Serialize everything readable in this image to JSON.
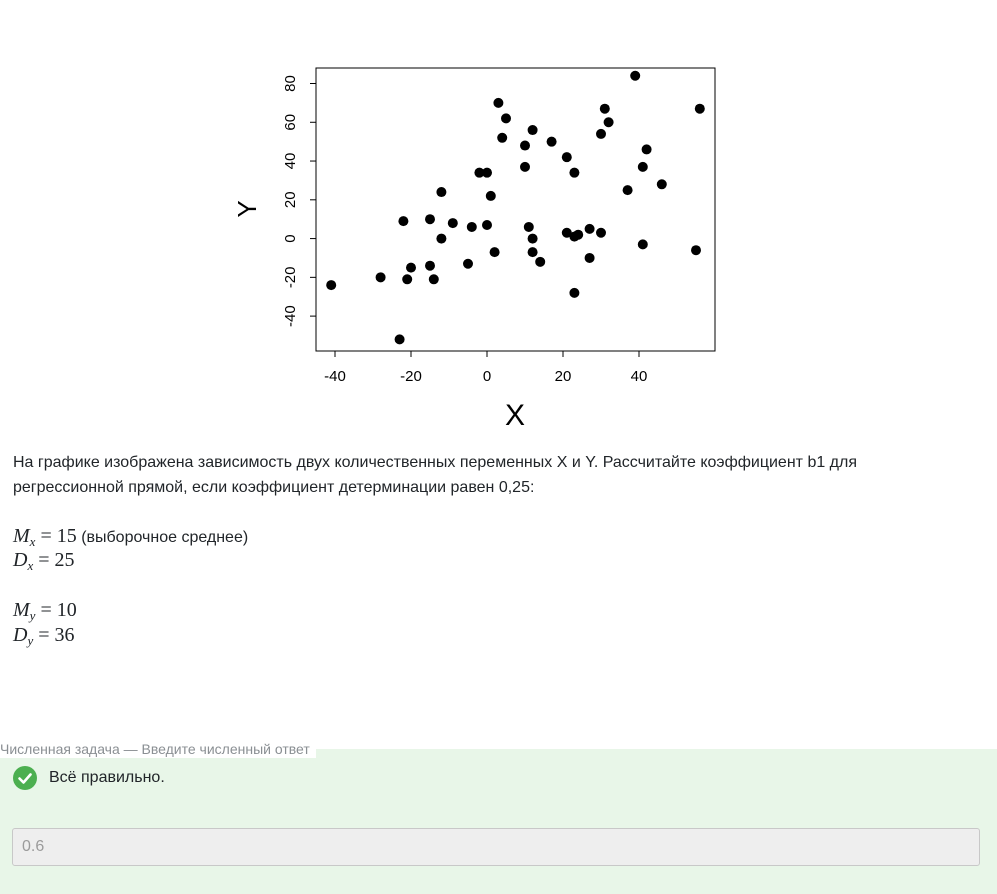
{
  "chart_data": {
    "type": "scatter",
    "xlabel": "X",
    "ylabel": "Y",
    "xlim": [
      -45,
      60
    ],
    "ylim": [
      -58,
      88
    ],
    "xticks": [
      -40,
      -20,
      0,
      20,
      40
    ],
    "yticks": [
      -40,
      -20,
      0,
      20,
      40,
      60,
      80
    ],
    "grid": false,
    "points": [
      [
        -41,
        -24
      ],
      [
        -28,
        -20
      ],
      [
        -23,
        -52
      ],
      [
        -22,
        9
      ],
      [
        -21,
        -21
      ],
      [
        -20,
        -15
      ],
      [
        -15,
        10
      ],
      [
        -15,
        -14
      ],
      [
        -14,
        -21
      ],
      [
        -12,
        24
      ],
      [
        -12,
        0
      ],
      [
        -9,
        8
      ],
      [
        -5,
        -13
      ],
      [
        -4,
        6
      ],
      [
        -2,
        34
      ],
      [
        0,
        34
      ],
      [
        0,
        7
      ],
      [
        1,
        22
      ],
      [
        2,
        -7
      ],
      [
        3,
        70
      ],
      [
        4,
        52
      ],
      [
        5,
        62
      ],
      [
        10,
        48
      ],
      [
        10,
        37
      ],
      [
        11,
        6
      ],
      [
        12,
        0
      ],
      [
        12,
        -7
      ],
      [
        12,
        56
      ],
      [
        14,
        -12
      ],
      [
        17,
        50
      ],
      [
        21,
        42
      ],
      [
        21,
        3
      ],
      [
        23,
        1
      ],
      [
        23,
        34
      ],
      [
        23,
        -28
      ],
      [
        24,
        2
      ],
      [
        27,
        -10
      ],
      [
        27,
        5
      ],
      [
        30,
        3
      ],
      [
        30,
        54
      ],
      [
        31,
        67
      ],
      [
        32,
        60
      ],
      [
        37,
        25
      ],
      [
        39,
        84
      ],
      [
        41,
        -3
      ],
      [
        41,
        37
      ],
      [
        42,
        46
      ],
      [
        46,
        28
      ],
      [
        55,
        -6
      ],
      [
        56,
        67
      ]
    ]
  },
  "question": {
    "text": "На графике изображена зависимость двух количественных переменных X и Y. Рассчитайте коэффициент b1 для регрессионной прямой, если коэффициент детерминации равен 0,25:",
    "mx_value": "15",
    "mx_note": "(выборочное среднее)",
    "dx_value": "25",
    "my_value": "10",
    "dy_value": "36"
  },
  "answer": {
    "panel_title": "Численная задача — Введите численный ответ",
    "feedback": "Всё правильно.",
    "value": "0.6"
  },
  "colors": {
    "panel_bg": "#e8f6e8",
    "success": "#4caf50"
  }
}
